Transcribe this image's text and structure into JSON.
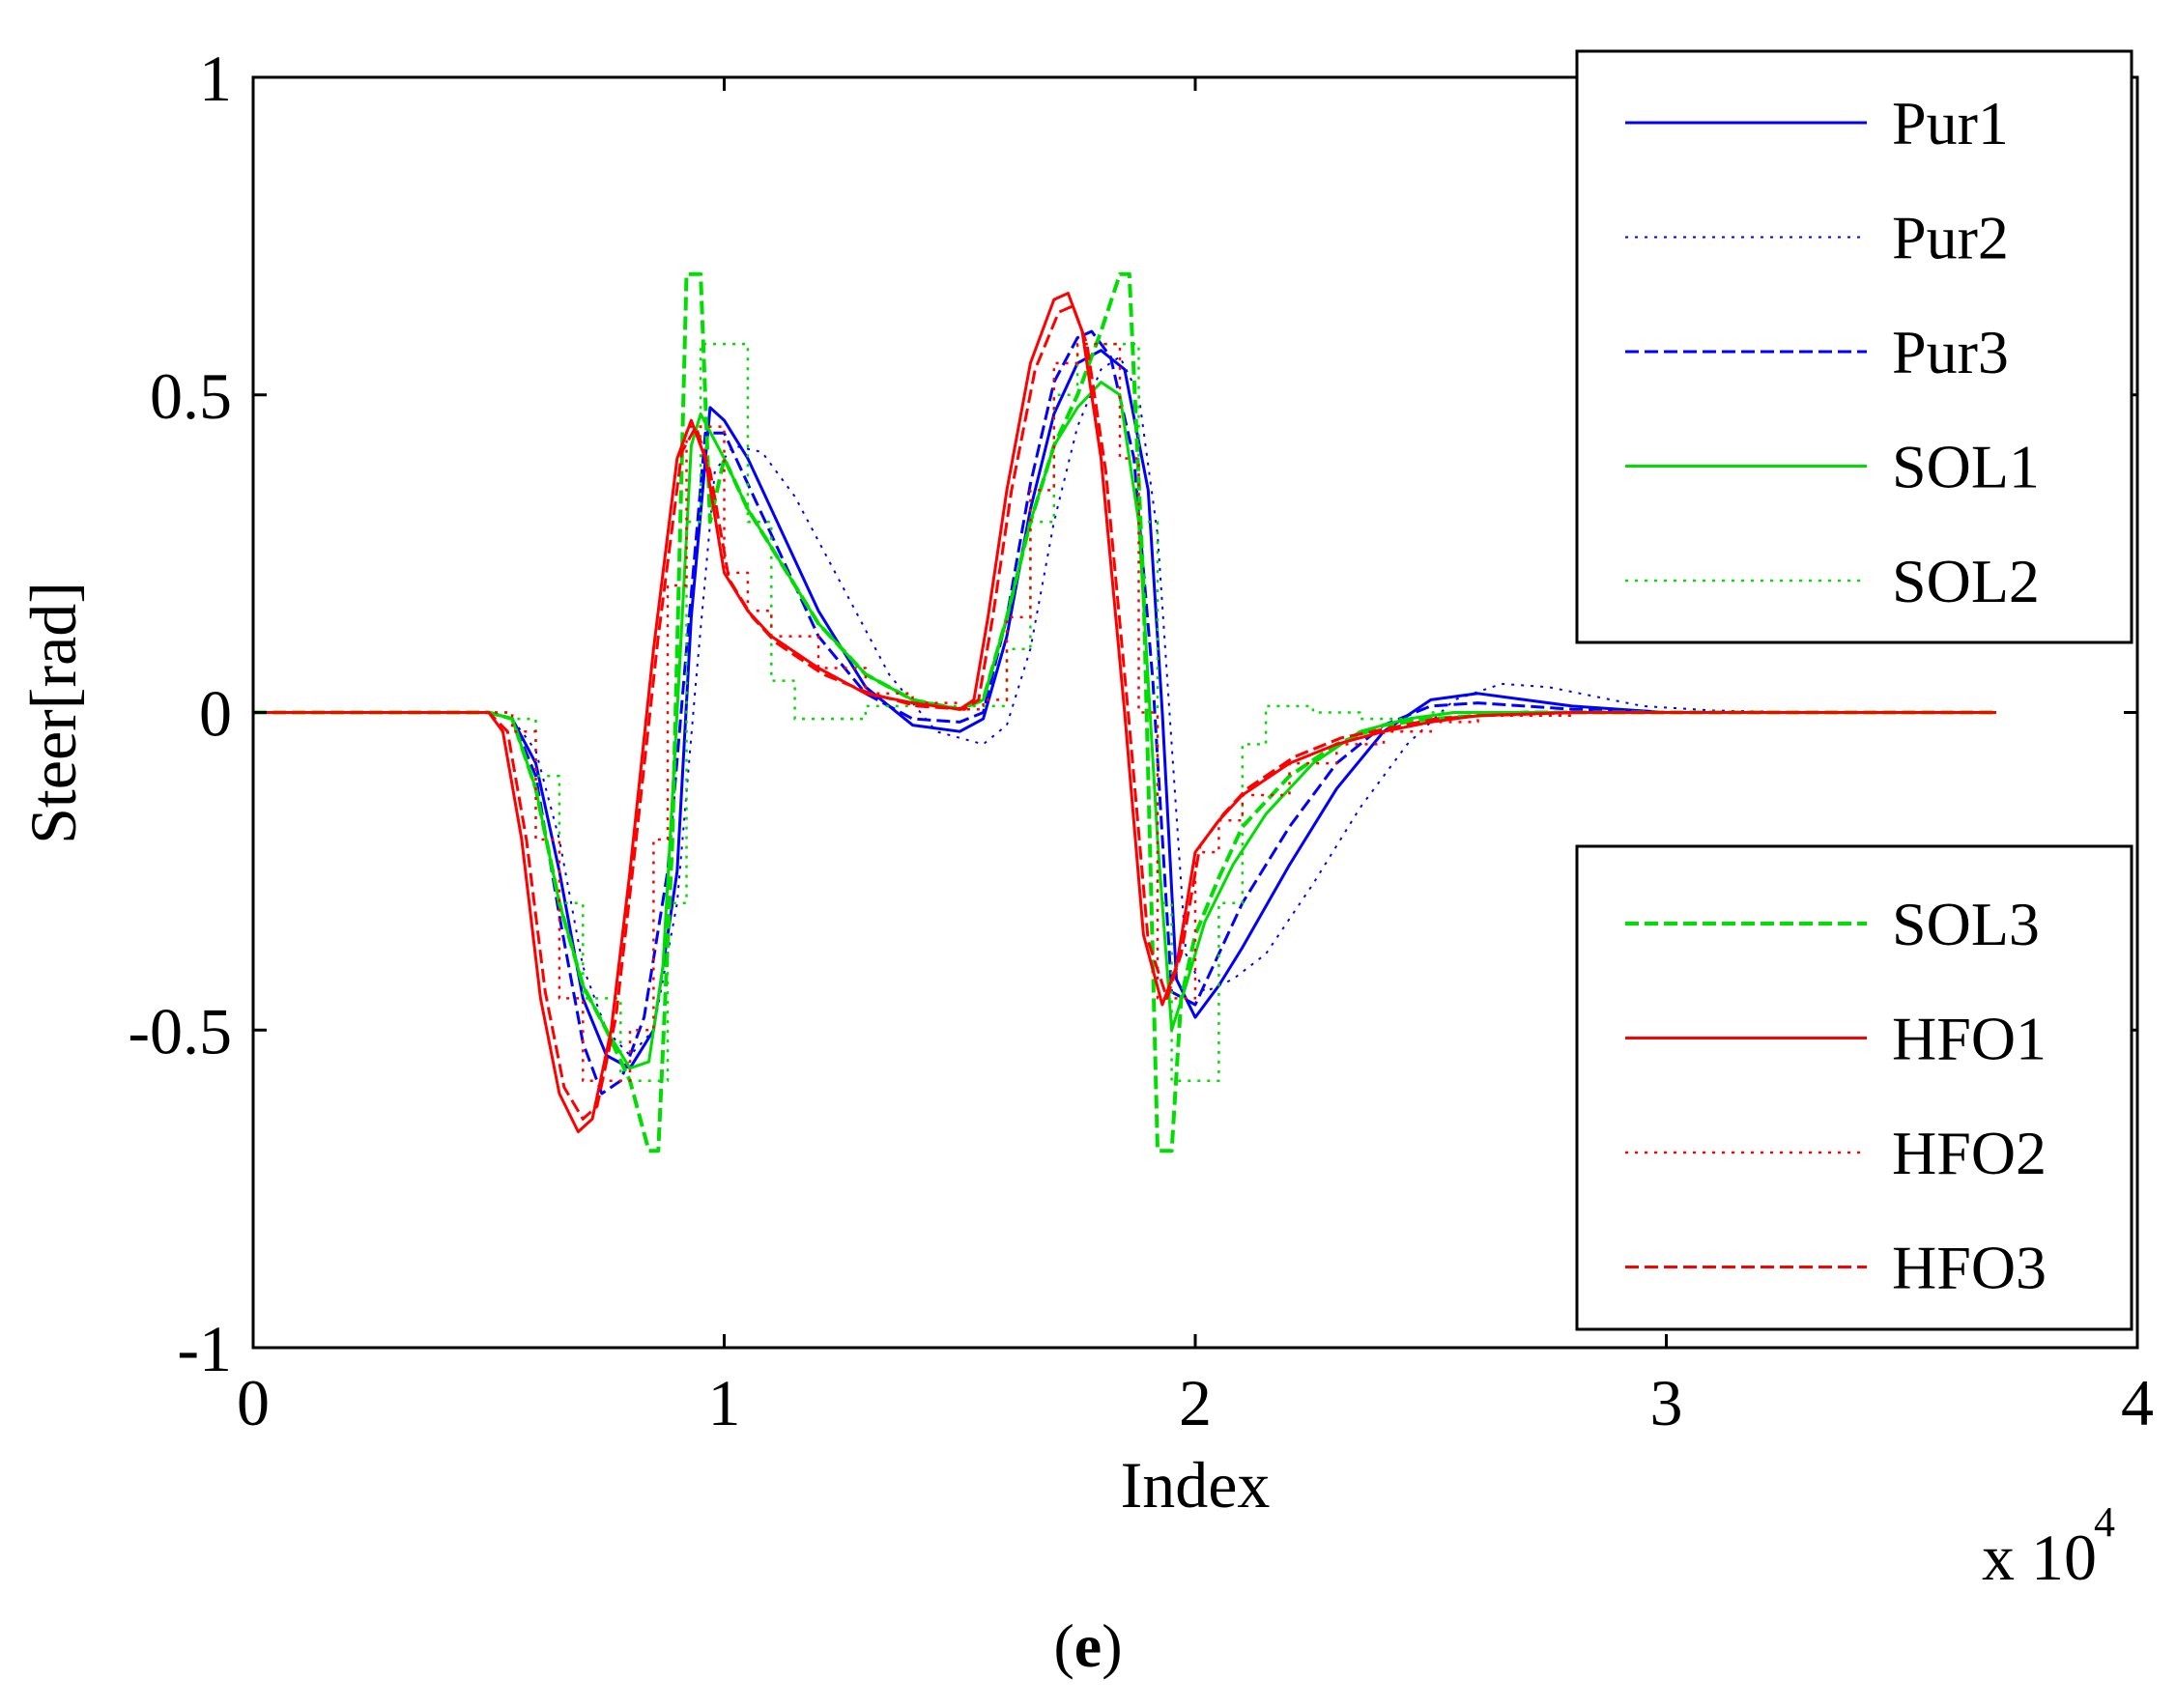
{
  "panel_label": {
    "open": "(",
    "letter": "e",
    "close": ")"
  },
  "chart_data": {
    "type": "line",
    "title": "",
    "xlabel": "Index",
    "ylabel": "Steer[rad]",
    "x_multiplier_label": "x 10",
    "x_multiplier_exp": "4",
    "xlim": [
      0,
      4
    ],
    "ylim": [
      -1,
      1
    ],
    "xticks": [
      0,
      1,
      2,
      3,
      4
    ],
    "xtick_labels": [
      "0",
      "1",
      "2",
      "3",
      "4"
    ],
    "yticks": [
      -1,
      -0.5,
      0,
      0.5,
      1
    ],
    "ytick_labels": [
      "-1",
      "-0.5",
      "0",
      "0.5",
      "1"
    ],
    "grid": false,
    "legends": [
      {
        "placement": "top-right",
        "entries": [
          "Pur1",
          "Pur2",
          "Pur3",
          "SOL1",
          "SOL2"
        ]
      },
      {
        "placement": "bottom-right",
        "entries": [
          "SOL3",
          "HFO1",
          "HFO2",
          "HFO3"
        ]
      }
    ],
    "series": [
      {
        "name": "Pur1",
        "color": "#0000ff",
        "style": "solid",
        "width": 3,
        "x": [
          0,
          0.5,
          0.55,
          0.6,
          0.65,
          0.7,
          0.75,
          0.8,
          0.85,
          0.9,
          0.93,
          0.97,
          1.0,
          1.05,
          1.1,
          1.2,
          1.3,
          1.4,
          1.5,
          1.55,
          1.6,
          1.65,
          1.7,
          1.75,
          1.8,
          1.85,
          1.9,
          1.93,
          1.96,
          2.0,
          2.05,
          2.1,
          2.2,
          2.3,
          2.4,
          2.5,
          2.6,
          2.7,
          2.8,
          2.9,
          3.0,
          3.2,
          3.4,
          3.6,
          3.7
        ],
        "y": [
          0,
          0,
          -0.01,
          -0.08,
          -0.25,
          -0.45,
          -0.54,
          -0.56,
          -0.5,
          -0.25,
          0.15,
          0.48,
          0.46,
          0.4,
          0.32,
          0.16,
          0.04,
          -0.02,
          -0.03,
          -0.01,
          0.12,
          0.32,
          0.47,
          0.55,
          0.57,
          0.54,
          0.35,
          0.0,
          -0.42,
          -0.48,
          -0.43,
          -0.37,
          -0.24,
          -0.12,
          -0.03,
          0.02,
          0.03,
          0.02,
          0.01,
          0.005,
          0,
          0,
          0,
          0,
          0
        ]
      },
      {
        "name": "Pur2",
        "color": "#0000ff",
        "style": "dotted",
        "width": 2,
        "x": [
          0,
          0.5,
          0.55,
          0.6,
          0.65,
          0.7,
          0.75,
          0.8,
          0.85,
          0.9,
          0.94,
          0.98,
          1.02,
          1.08,
          1.15,
          1.25,
          1.35,
          1.45,
          1.55,
          1.6,
          1.65,
          1.7,
          1.75,
          1.8,
          1.84,
          1.88,
          1.92,
          1.95,
          1.98,
          2.02,
          2.08,
          2.15,
          2.25,
          2.35,
          2.45,
          2.55,
          2.65,
          2.75,
          2.85,
          2.95,
          3.1,
          3.3,
          3.5,
          3.7
        ],
        "y": [
          0,
          0,
          -0.01,
          -0.06,
          -0.2,
          -0.4,
          -0.5,
          -0.54,
          -0.5,
          -0.3,
          0.05,
          0.38,
          0.42,
          0.41,
          0.34,
          0.2,
          0.06,
          -0.03,
          -0.05,
          -0.02,
          0.1,
          0.3,
          0.45,
          0.54,
          0.56,
          0.5,
          0.28,
          -0.05,
          -0.38,
          -0.44,
          -0.42,
          -0.38,
          -0.27,
          -0.15,
          -0.05,
          0.02,
          0.045,
          0.04,
          0.025,
          0.01,
          0.003,
          0,
          0,
          0
        ]
      },
      {
        "name": "Pur3",
        "color": "#0000ff",
        "style": "dashed",
        "width": 3,
        "x": [
          0,
          0.5,
          0.55,
          0.6,
          0.65,
          0.7,
          0.74,
          0.78,
          0.83,
          0.88,
          0.92,
          0.96,
          1.0,
          1.05,
          1.1,
          1.2,
          1.3,
          1.4,
          1.5,
          1.55,
          1.6,
          1.65,
          1.7,
          1.75,
          1.78,
          1.82,
          1.87,
          1.91,
          1.95,
          2.0,
          2.05,
          2.1,
          2.2,
          2.3,
          2.4,
          2.5,
          2.6,
          2.7,
          2.8,
          3.0,
          3.2,
          3.5,
          3.7
        ],
        "y": [
          0,
          0,
          -0.01,
          -0.1,
          -0.32,
          -0.52,
          -0.6,
          -0.58,
          -0.48,
          -0.25,
          0.1,
          0.44,
          0.44,
          0.36,
          0.28,
          0.12,
          0.03,
          -0.01,
          -0.015,
          0.0,
          0.15,
          0.36,
          0.52,
          0.59,
          0.6,
          0.56,
          0.4,
          0.05,
          -0.44,
          -0.46,
          -0.38,
          -0.3,
          -0.18,
          -0.08,
          -0.02,
          0.01,
          0.015,
          0.01,
          0.005,
          0,
          0,
          0,
          0
        ]
      },
      {
        "name": "SOL1",
        "color": "#00dd00",
        "style": "solid",
        "width": 3,
        "x": [
          0,
          0.5,
          0.55,
          0.6,
          0.65,
          0.7,
          0.75,
          0.8,
          0.84,
          0.87,
          0.9,
          0.93,
          0.95,
          1.0,
          1.05,
          1.1,
          1.2,
          1.3,
          1.4,
          1.5,
          1.55,
          1.6,
          1.65,
          1.7,
          1.75,
          1.8,
          1.84,
          1.88,
          1.92,
          1.95,
          1.98,
          2.02,
          2.08,
          2.15,
          2.25,
          2.35,
          2.45,
          2.55,
          2.7,
          2.9,
          3.1,
          3.3,
          3.5,
          3.7
        ],
        "y": [
          0,
          0,
          -0.01,
          -0.12,
          -0.3,
          -0.43,
          -0.5,
          -0.56,
          -0.55,
          -0.4,
          0.0,
          0.42,
          0.47,
          0.4,
          0.32,
          0.26,
          0.14,
          0.06,
          0.02,
          0.005,
          0.02,
          0.15,
          0.3,
          0.42,
          0.48,
          0.52,
          0.5,
          0.3,
          -0.2,
          -0.5,
          -0.43,
          -0.33,
          -0.24,
          -0.16,
          -0.08,
          -0.03,
          -0.01,
          0,
          0,
          0,
          0,
          0,
          0,
          0
        ]
      },
      {
        "name": "SOL2",
        "color": "#00dd00",
        "style": "dotted",
        "width": 2.5,
        "step": true,
        "x": [
          0,
          0.5,
          0.55,
          0.6,
          0.65,
          0.7,
          0.78,
          0.85,
          0.88,
          0.92,
          0.95,
          1.0,
          1.05,
          1.1,
          1.15,
          1.2,
          1.3,
          1.4,
          1.5,
          1.6,
          1.65,
          1.7,
          1.75,
          1.8,
          1.85,
          1.88,
          1.92,
          1.95,
          2.0,
          2.05,
          2.1,
          2.15,
          2.2,
          2.25,
          2.35,
          2.5,
          2.7,
          3.0,
          3.3,
          3.7
        ],
        "y": [
          0,
          0,
          -0.01,
          -0.1,
          -0.3,
          -0.45,
          -0.58,
          -0.58,
          -0.3,
          0.3,
          0.58,
          0.58,
          0.3,
          0.05,
          -0.01,
          -0.01,
          0.01,
          0.01,
          0.01,
          0.1,
          0.3,
          0.5,
          0.58,
          0.58,
          0.58,
          0.3,
          -0.3,
          -0.58,
          -0.58,
          -0.3,
          -0.05,
          0.01,
          0.01,
          0.0,
          -0.01,
          0,
          0,
          0,
          0,
          0
        ]
      },
      {
        "name": "SOL3",
        "color": "#00dd00",
        "style": "dashed",
        "width": 4,
        "x": [
          0,
          0.5,
          0.55,
          0.6,
          0.65,
          0.7,
          0.75,
          0.8,
          0.84,
          0.86,
          0.89,
          0.92,
          0.95,
          0.97,
          1.0,
          1.05,
          1.1,
          1.2,
          1.3,
          1.4,
          1.5,
          1.55,
          1.6,
          1.65,
          1.7,
          1.75,
          1.8,
          1.84,
          1.86,
          1.89,
          1.92,
          1.95,
          1.97,
          2.0,
          2.05,
          2.1,
          2.2,
          2.3,
          2.4,
          2.5,
          2.7,
          2.9,
          3.1,
          3.4,
          3.7
        ],
        "y": [
          0,
          0,
          -0.01,
          -0.12,
          -0.3,
          -0.43,
          -0.5,
          -0.58,
          -0.69,
          -0.69,
          -0.2,
          0.69,
          0.69,
          0.3,
          0.4,
          0.32,
          0.26,
          0.14,
          0.06,
          0.02,
          0.005,
          0.02,
          0.15,
          0.3,
          0.42,
          0.5,
          0.6,
          0.69,
          0.69,
          0.2,
          -0.69,
          -0.69,
          -0.45,
          -0.35,
          -0.26,
          -0.18,
          -0.1,
          -0.05,
          -0.02,
          -0.01,
          0,
          0,
          0,
          0,
          0
        ]
      },
      {
        "name": "HFO1",
        "color": "#ff0000",
        "style": "solid",
        "width": 3,
        "x": [
          0,
          0.5,
          0.53,
          0.57,
          0.61,
          0.65,
          0.69,
          0.72,
          0.76,
          0.8,
          0.85,
          0.9,
          0.93,
          0.96,
          1.0,
          1.05,
          1.1,
          1.2,
          1.3,
          1.4,
          1.5,
          1.53,
          1.56,
          1.6,
          1.65,
          1.7,
          1.73,
          1.76,
          1.8,
          1.85,
          1.89,
          1.93,
          1.96,
          2.0,
          2.05,
          2.1,
          2.2,
          2.3,
          2.4,
          2.5,
          2.6,
          2.8,
          3.0,
          3.3,
          3.7
        ],
        "y": [
          0,
          0,
          -0.03,
          -0.2,
          -0.45,
          -0.6,
          -0.66,
          -0.64,
          -0.5,
          -0.25,
          0.1,
          0.4,
          0.46,
          0.4,
          0.22,
          0.16,
          0.12,
          0.07,
          0.03,
          0.015,
          0.005,
          0.02,
          0.15,
          0.35,
          0.55,
          0.65,
          0.66,
          0.6,
          0.4,
          0.0,
          -0.35,
          -0.46,
          -0.4,
          -0.22,
          -0.17,
          -0.13,
          -0.08,
          -0.05,
          -0.03,
          -0.015,
          -0.005,
          0,
          0,
          0,
          0
        ]
      },
      {
        "name": "HFO2",
        "color": "#ff0000",
        "style": "dotted",
        "width": 2.5,
        "step": true,
        "x": [
          0,
          0.5,
          0.55,
          0.6,
          0.65,
          0.7,
          0.75,
          0.8,
          0.85,
          0.88,
          0.92,
          0.96,
          1.0,
          1.05,
          1.1,
          1.2,
          1.3,
          1.4,
          1.5,
          1.55,
          1.6,
          1.65,
          1.7,
          1.75,
          1.8,
          1.84,
          1.88,
          1.92,
          1.95,
          2.0,
          2.05,
          2.1,
          2.2,
          2.3,
          2.4,
          2.5,
          2.6,
          2.8,
          3.0,
          3.3,
          3.7
        ],
        "y": [
          0,
          0,
          -0.03,
          -0.2,
          -0.45,
          -0.58,
          -0.58,
          -0.5,
          -0.2,
          0.2,
          0.45,
          0.45,
          0.22,
          0.16,
          0.12,
          0.07,
          0.03,
          0.015,
          0.005,
          0.02,
          0.15,
          0.35,
          0.55,
          0.58,
          0.58,
          0.4,
          0.0,
          -0.45,
          -0.45,
          -0.22,
          -0.17,
          -0.13,
          -0.08,
          -0.05,
          -0.03,
          -0.015,
          -0.005,
          0,
          0,
          0,
          0
        ]
      },
      {
        "name": "HFO3",
        "color": "#ff0000",
        "style": "dashed",
        "width": 3,
        "x": [
          0,
          0.5,
          0.54,
          0.58,
          0.62,
          0.66,
          0.7,
          0.73,
          0.77,
          0.81,
          0.86,
          0.91,
          0.94,
          0.97,
          1.01,
          1.06,
          1.11,
          1.21,
          1.31,
          1.41,
          1.51,
          1.54,
          1.57,
          1.61,
          1.66,
          1.71,
          1.74,
          1.77,
          1.81,
          1.86,
          1.9,
          1.94,
          1.97,
          2.01,
          2.06,
          2.11,
          2.21,
          2.31,
          2.41,
          2.51,
          2.61,
          2.81,
          3.0,
          3.3,
          3.7
        ],
        "y": [
          0,
          0,
          -0.03,
          -0.2,
          -0.44,
          -0.59,
          -0.64,
          -0.62,
          -0.48,
          -0.22,
          0.12,
          0.41,
          0.45,
          0.38,
          0.21,
          0.15,
          0.11,
          0.06,
          0.03,
          0.01,
          0.005,
          0.02,
          0.15,
          0.35,
          0.54,
          0.63,
          0.64,
          0.58,
          0.38,
          -0.02,
          -0.36,
          -0.45,
          -0.38,
          -0.21,
          -0.16,
          -0.12,
          -0.07,
          -0.04,
          -0.025,
          -0.01,
          -0.005,
          0,
          0,
          0,
          0
        ]
      }
    ]
  }
}
